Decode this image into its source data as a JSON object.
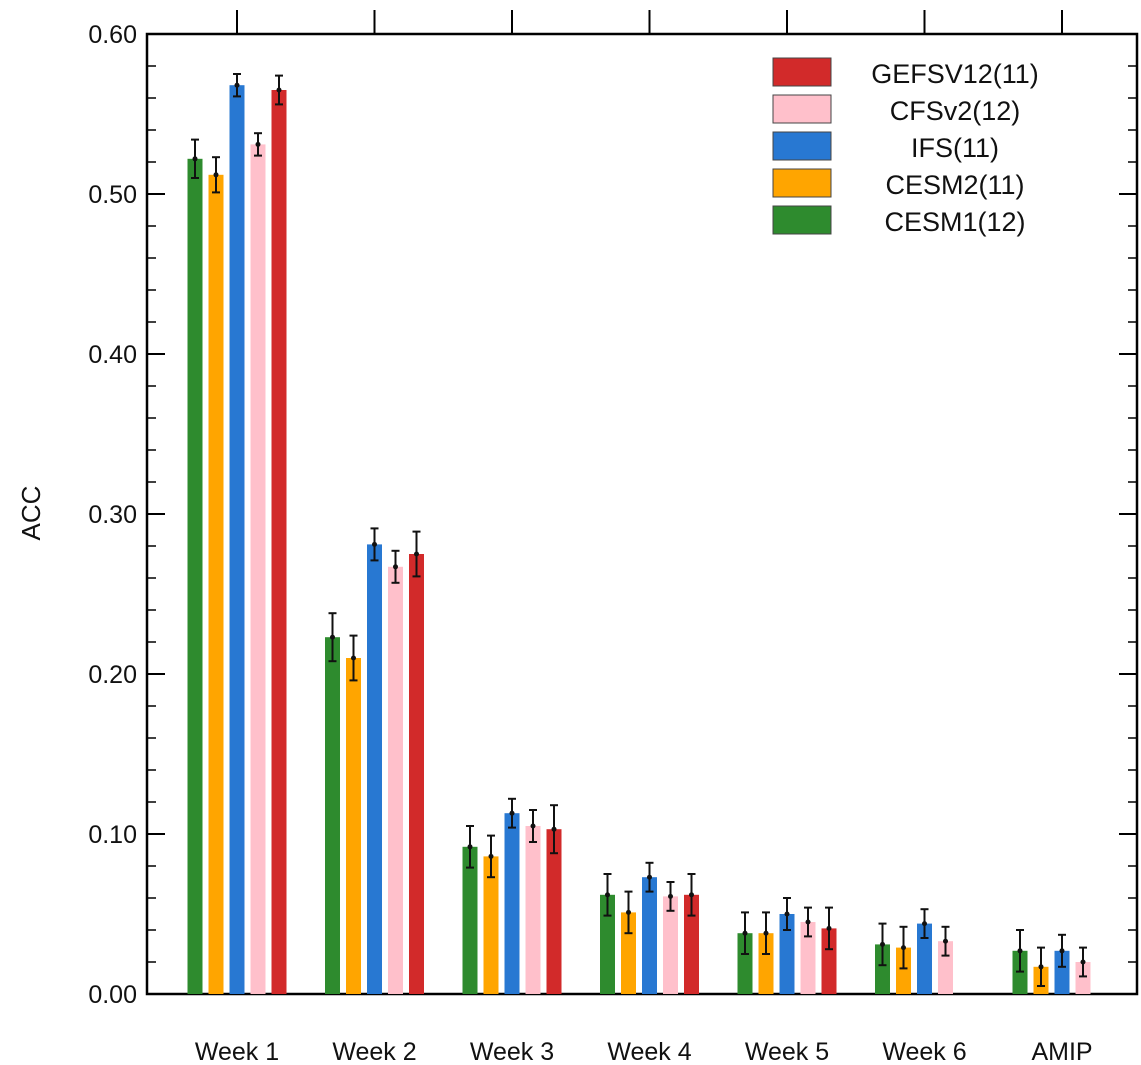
{
  "chart_data": {
    "type": "bar",
    "title": "",
    "xlabel": "",
    "ylabel": "ACC",
    "ylim": [
      0,
      0.6
    ],
    "yticks": [
      "0.00",
      "0.10",
      "0.20",
      "0.30",
      "0.40",
      "0.50",
      "0.60"
    ],
    "categories": [
      "Week 1",
      "Week 2",
      "Week 3",
      "Week 4",
      "Week 5",
      "Week 6",
      "AMIP"
    ],
    "grid": false,
    "legend_position": "top-right",
    "series": [
      {
        "name": "CESM1(12)",
        "color": "#2e8b2e",
        "values": [
          0.522,
          0.223,
          0.092,
          0.062,
          0.038,
          0.031,
          0.027
        ],
        "err": [
          0.012,
          0.015,
          0.013,
          0.013,
          0.013,
          0.013,
          0.013
        ]
      },
      {
        "name": "CESM2(11)",
        "color": "#ffa500",
        "values": [
          0.512,
          0.21,
          0.086,
          0.051,
          0.038,
          0.029,
          0.017
        ],
        "err": [
          0.011,
          0.014,
          0.013,
          0.013,
          0.013,
          0.013,
          0.012
        ]
      },
      {
        "name": "IFS(11)",
        "color": "#2878d2",
        "values": [
          0.568,
          0.281,
          0.113,
          0.073,
          0.05,
          0.044,
          0.027
        ],
        "err": [
          0.007,
          0.01,
          0.009,
          0.009,
          0.01,
          0.009,
          0.01
        ]
      },
      {
        "name": "CFSv2(12)",
        "color": "#ffc0cb",
        "values": [
          0.531,
          0.267,
          0.105,
          0.061,
          0.045,
          0.033,
          0.02
        ],
        "err": [
          0.007,
          0.01,
          0.01,
          0.009,
          0.009,
          0.009,
          0.009
        ]
      },
      {
        "name": "GEFSV12(11)",
        "color": "#d22a2a",
        "values": [
          0.565,
          0.275,
          0.103,
          0.062,
          0.041,
          null,
          null
        ],
        "err": [
          0.009,
          0.014,
          0.015,
          0.013,
          0.013,
          null,
          null
        ]
      }
    ],
    "legend_order": [
      "GEFSV12(11)",
      "CFSv2(12)",
      "IFS(11)",
      "CESM2(11)",
      "CESM1(12)"
    ]
  }
}
